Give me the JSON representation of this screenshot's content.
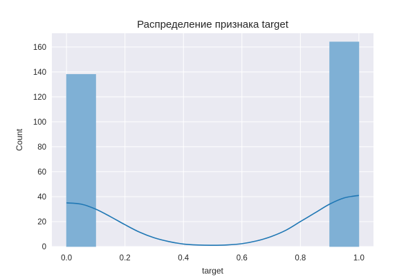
{
  "chart_data": {
    "type": "histogram",
    "title": "Распределение признака target",
    "xlabel": "target",
    "ylabel": "Count",
    "xlim": [
      -0.05,
      1.05
    ],
    "ylim": [
      0,
      171
    ],
    "x_ticks": [
      0.0,
      0.2,
      0.4,
      0.6,
      0.8,
      1.0
    ],
    "x_tick_labels": [
      "0.0",
      "0.2",
      "0.4",
      "0.6",
      "0.8",
      "1.0"
    ],
    "y_ticks": [
      0,
      20,
      40,
      60,
      80,
      100,
      120,
      140,
      160
    ],
    "y_tick_labels": [
      "0",
      "20",
      "40",
      "60",
      "80",
      "100",
      "120",
      "140",
      "160"
    ],
    "bins": [
      {
        "x0": 0.0,
        "x1": 0.1,
        "count": 138
      },
      {
        "x0": 0.1,
        "x1": 0.2,
        "count": 0
      },
      {
        "x0": 0.2,
        "x1": 0.3,
        "count": 0
      },
      {
        "x0": 0.3,
        "x1": 0.4,
        "count": 0
      },
      {
        "x0": 0.4,
        "x1": 0.5,
        "count": 0
      },
      {
        "x0": 0.5,
        "x1": 0.6,
        "count": 0
      },
      {
        "x0": 0.6,
        "x1": 0.7,
        "count": 0
      },
      {
        "x0": 0.7,
        "x1": 0.8,
        "count": 0
      },
      {
        "x0": 0.8,
        "x1": 0.9,
        "count": 0
      },
      {
        "x0": 0.9,
        "x1": 1.0,
        "count": 164
      }
    ],
    "kde": {
      "x": [
        0.0,
        0.05,
        0.1,
        0.15,
        0.2,
        0.25,
        0.3,
        0.35,
        0.4,
        0.45,
        0.5,
        0.55,
        0.6,
        0.65,
        0.7,
        0.75,
        0.8,
        0.85,
        0.9,
        0.95,
        1.0
      ],
      "y": [
        35,
        34,
        30,
        24,
        17.5,
        11.5,
        7,
        4,
        2,
        1.2,
        1,
        1.3,
        2.3,
        4.5,
        8,
        13,
        20,
        27,
        34,
        39,
        41
      ]
    },
    "grid": true,
    "colors": {
      "bar_fill": "#7fb0d5",
      "bar_stroke": "#7fb0d5",
      "kde_line": "#1f77b4",
      "plot_background": "#eaeaf2",
      "grid": "#ffffff"
    }
  }
}
